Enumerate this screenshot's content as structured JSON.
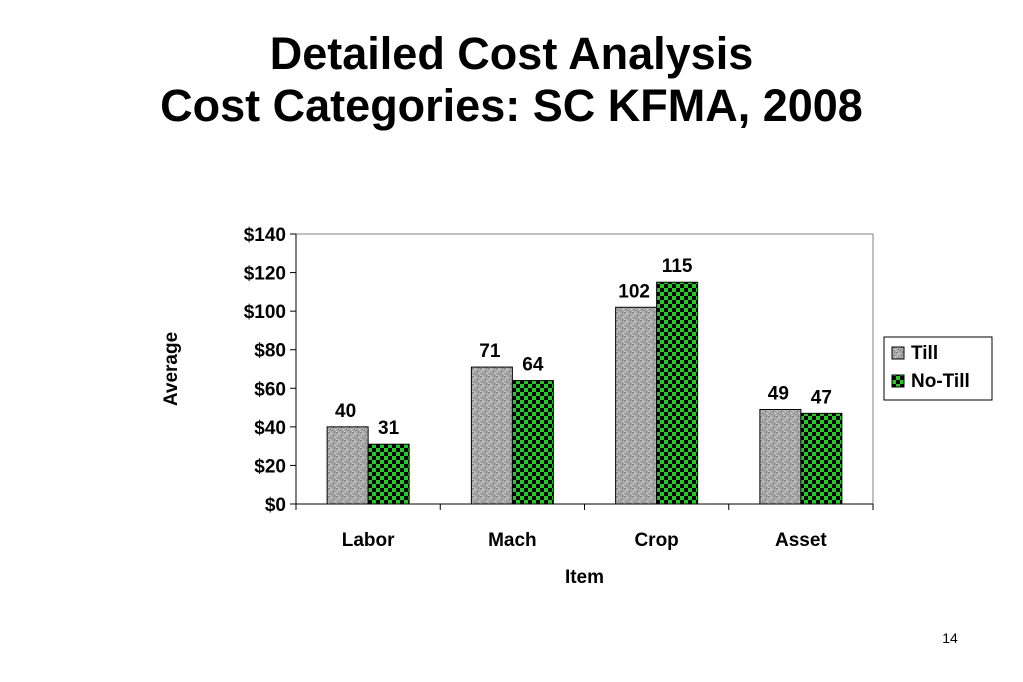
{
  "slide": {
    "title_line1": "Detailed Cost Analysis",
    "title_line2": "Cost Categories: SC KFMA, 2008",
    "page_number": "14"
  },
  "chart_data": {
    "type": "bar",
    "categories": [
      "Labor",
      "Mach",
      "Crop",
      "Asset"
    ],
    "series": [
      {
        "name": "Till",
        "values": [
          40,
          71,
          102,
          49
        ],
        "color": "#a9a9a9",
        "pattern": "granite"
      },
      {
        "name": "No-Till",
        "values": [
          31,
          64,
          115,
          47
        ],
        "color": "#22cc22",
        "pattern": "checker"
      }
    ],
    "data_labels": [
      [
        "40",
        "71",
        "102",
        "49"
      ],
      [
        "31",
        "64",
        "115",
        "47"
      ]
    ],
    "xlabel": "Item",
    "ylabel": "Average",
    "ylim": [
      0,
      140
    ],
    "yticks": [
      0,
      20,
      40,
      60,
      80,
      100,
      120,
      140
    ],
    "ytick_labels": [
      "$0",
      "$20",
      "$40",
      "$60",
      "$80",
      "$100",
      "$120",
      "$140"
    ],
    "legend_position": "right",
    "grid": false
  }
}
